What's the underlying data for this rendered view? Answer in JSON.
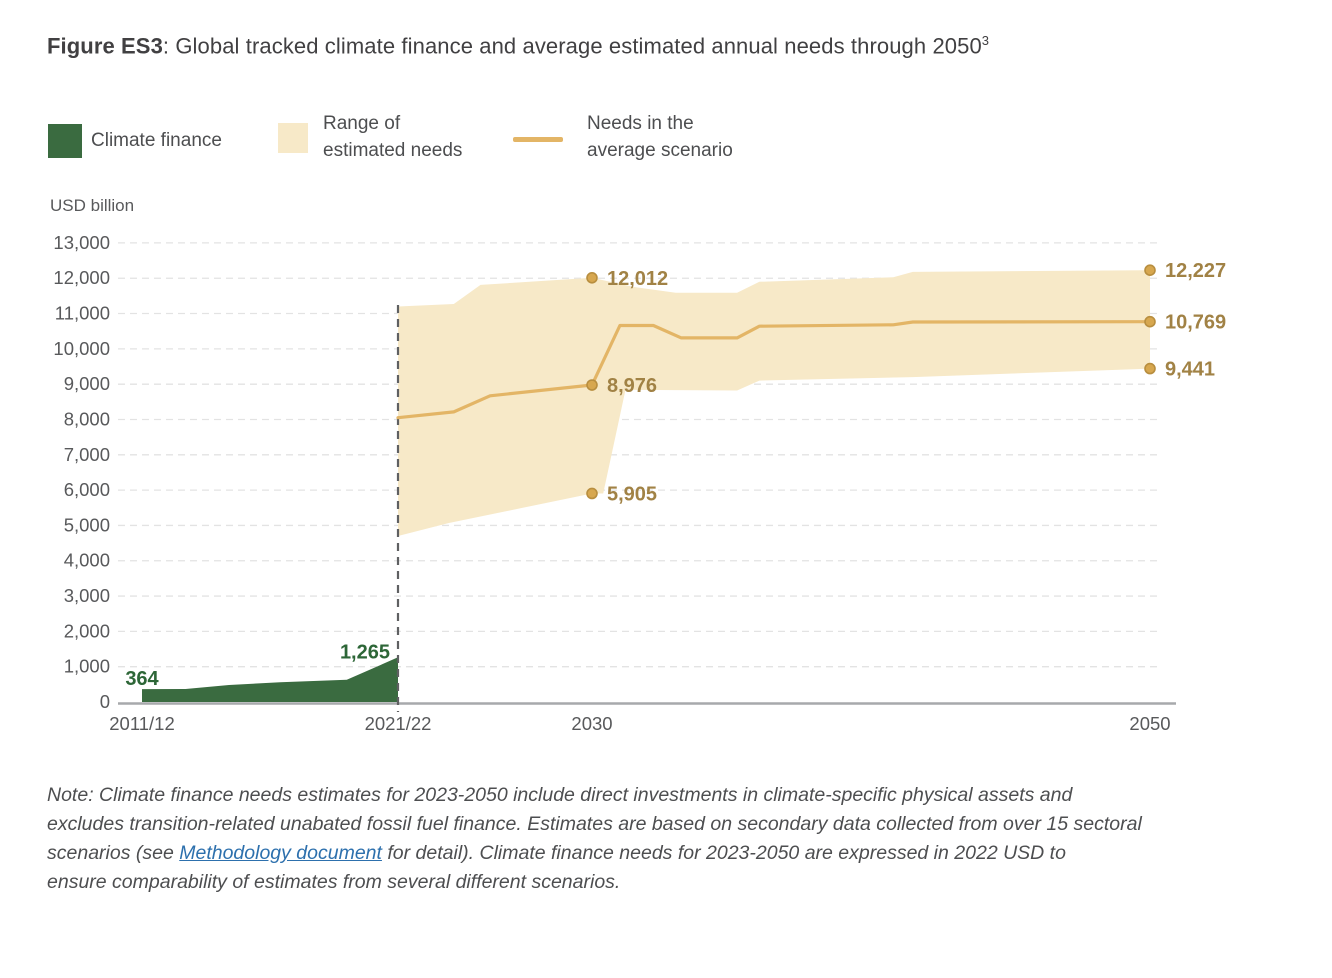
{
  "figure": {
    "label": "Figure ES3",
    "title": ": Global tracked climate finance and average estimated annual needs through 2050",
    "footnote_marker": "3"
  },
  "legend": {
    "climate_finance": {
      "label": "Climate finance"
    },
    "range": {
      "line1": "Range of",
      "line2": "estimated needs"
    },
    "needs": {
      "line1": "Needs in the",
      "line2": "average scenario"
    }
  },
  "note": {
    "line1": "Note: Climate finance needs estimates for 2023-2050 include direct investments in climate-specific physical assets and",
    "line2": "excludes transition-related unabated fossil fuel finance. Estimates are based on secondary data collected from over 15 sectoral",
    "line3_before_link": "scenarios (see ",
    "link_text": "Methodology document",
    "line3_after_link": " for detail). Climate finance needs for 2023-2050 are expressed in 2022 USD to",
    "line4": "ensure comparability of estimates from several different scenarios."
  },
  "chart_data": {
    "type": "area",
    "subtype": "area + band + line combo",
    "unit_label": "USD billion",
    "y_axis": {
      "min": 0,
      "max": 13000,
      "step": 1000,
      "grid": "dashed",
      "ticks": [
        {
          "value": 0,
          "label": "0"
        },
        {
          "value": 1000,
          "label": "1,000"
        },
        {
          "value": 2000,
          "label": "2,000"
        },
        {
          "value": 3000,
          "label": "3,000"
        },
        {
          "value": 4000,
          "label": "4,000"
        },
        {
          "value": 5000,
          "label": "5,000"
        },
        {
          "value": 6000,
          "label": "6,000"
        },
        {
          "value": 7000,
          "label": "7,000"
        },
        {
          "value": 8000,
          "label": "8,000"
        },
        {
          "value": 9000,
          "label": "9,000"
        },
        {
          "value": 10000,
          "label": "10,000"
        },
        {
          "value": 11000,
          "label": "11,000"
        },
        {
          "value": 12000,
          "label": "12,000"
        },
        {
          "value": 13000,
          "label": "13,000"
        }
      ]
    },
    "x_axis": {
      "ticks": [
        {
          "year": 2012,
          "label": "2011/12"
        },
        {
          "year": 2022,
          "label": "2021/22"
        },
        {
          "year": 2030,
          "label": "2030"
        },
        {
          "year": 2050,
          "label": "2050"
        }
      ]
    },
    "divider_year": 2022,
    "series": [
      {
        "name": "Climate finance",
        "type": "area",
        "points": [
          [
            2012,
            364
          ],
          [
            2013.7,
            368
          ],
          [
            2015.4,
            480
          ],
          [
            2017.4,
            560
          ],
          [
            2020,
            630
          ],
          [
            2022,
            1265
          ]
        ]
      },
      {
        "name": "Range of estimated needs",
        "type": "band",
        "top": [
          [
            2022,
            11200
          ],
          [
            2024.3,
            11270
          ],
          [
            2025.4,
            11810
          ],
          [
            2030,
            12012
          ],
          [
            2031.5,
            11750
          ],
          [
            2033,
            11590
          ],
          [
            2035.2,
            11590
          ],
          [
            2036,
            11900
          ],
          [
            2040.8,
            12030
          ],
          [
            2041.5,
            12180
          ],
          [
            2050,
            12227
          ]
        ],
        "bottom": [
          [
            2022,
            4700
          ],
          [
            2024.1,
            5070
          ],
          [
            2030,
            5905
          ],
          [
            2030.4,
            5905
          ],
          [
            2031.2,
            8840
          ],
          [
            2035.2,
            8820
          ],
          [
            2036,
            9100
          ],
          [
            2041.5,
            9200
          ],
          [
            2050,
            9441
          ]
        ]
      },
      {
        "name": "Needs in the average scenario",
        "type": "line",
        "points": [
          [
            2022,
            8050
          ],
          [
            2024.3,
            8215
          ],
          [
            2025.8,
            8670
          ],
          [
            2030,
            8976
          ],
          [
            2031,
            10660
          ],
          [
            2032.2,
            10660
          ],
          [
            2033.2,
            10310
          ],
          [
            2035.2,
            10310
          ],
          [
            2036,
            10640
          ],
          [
            2040.8,
            10680
          ],
          [
            2041.5,
            10760
          ],
          [
            2050,
            10769
          ]
        ]
      }
    ],
    "annotations": {
      "climate_finance_labels": [
        {
          "year": 2012,
          "value": 364,
          "label": "364"
        },
        {
          "year": 2022,
          "value": 1265,
          "label": "1,265"
        }
      ],
      "needs_markers": [
        {
          "year": 2030,
          "value": 12012,
          "label": "12,012"
        },
        {
          "year": 2030,
          "value": 8976,
          "label": "8,976"
        },
        {
          "year": 2030,
          "value": 5905,
          "label": "5,905"
        },
        {
          "year": 2050,
          "value": 12227,
          "label": "12,227"
        },
        {
          "year": 2050,
          "value": 10769,
          "label": "10,769"
        },
        {
          "year": 2050,
          "value": 9441,
          "label": "9,441"
        }
      ]
    },
    "colors": {
      "climate_finance": "#3a6b40",
      "band": "#f7e9c8",
      "line": "#e3b566",
      "marker_fill": "#d7a74f",
      "marker_stroke": "#b88e3f",
      "value_label": "#a18245",
      "green_label": "#2d6637",
      "grid": "#e3e3e3",
      "axis": "#a7a9ac",
      "tick_text": "#58595b",
      "divider": "#5f6062"
    }
  }
}
